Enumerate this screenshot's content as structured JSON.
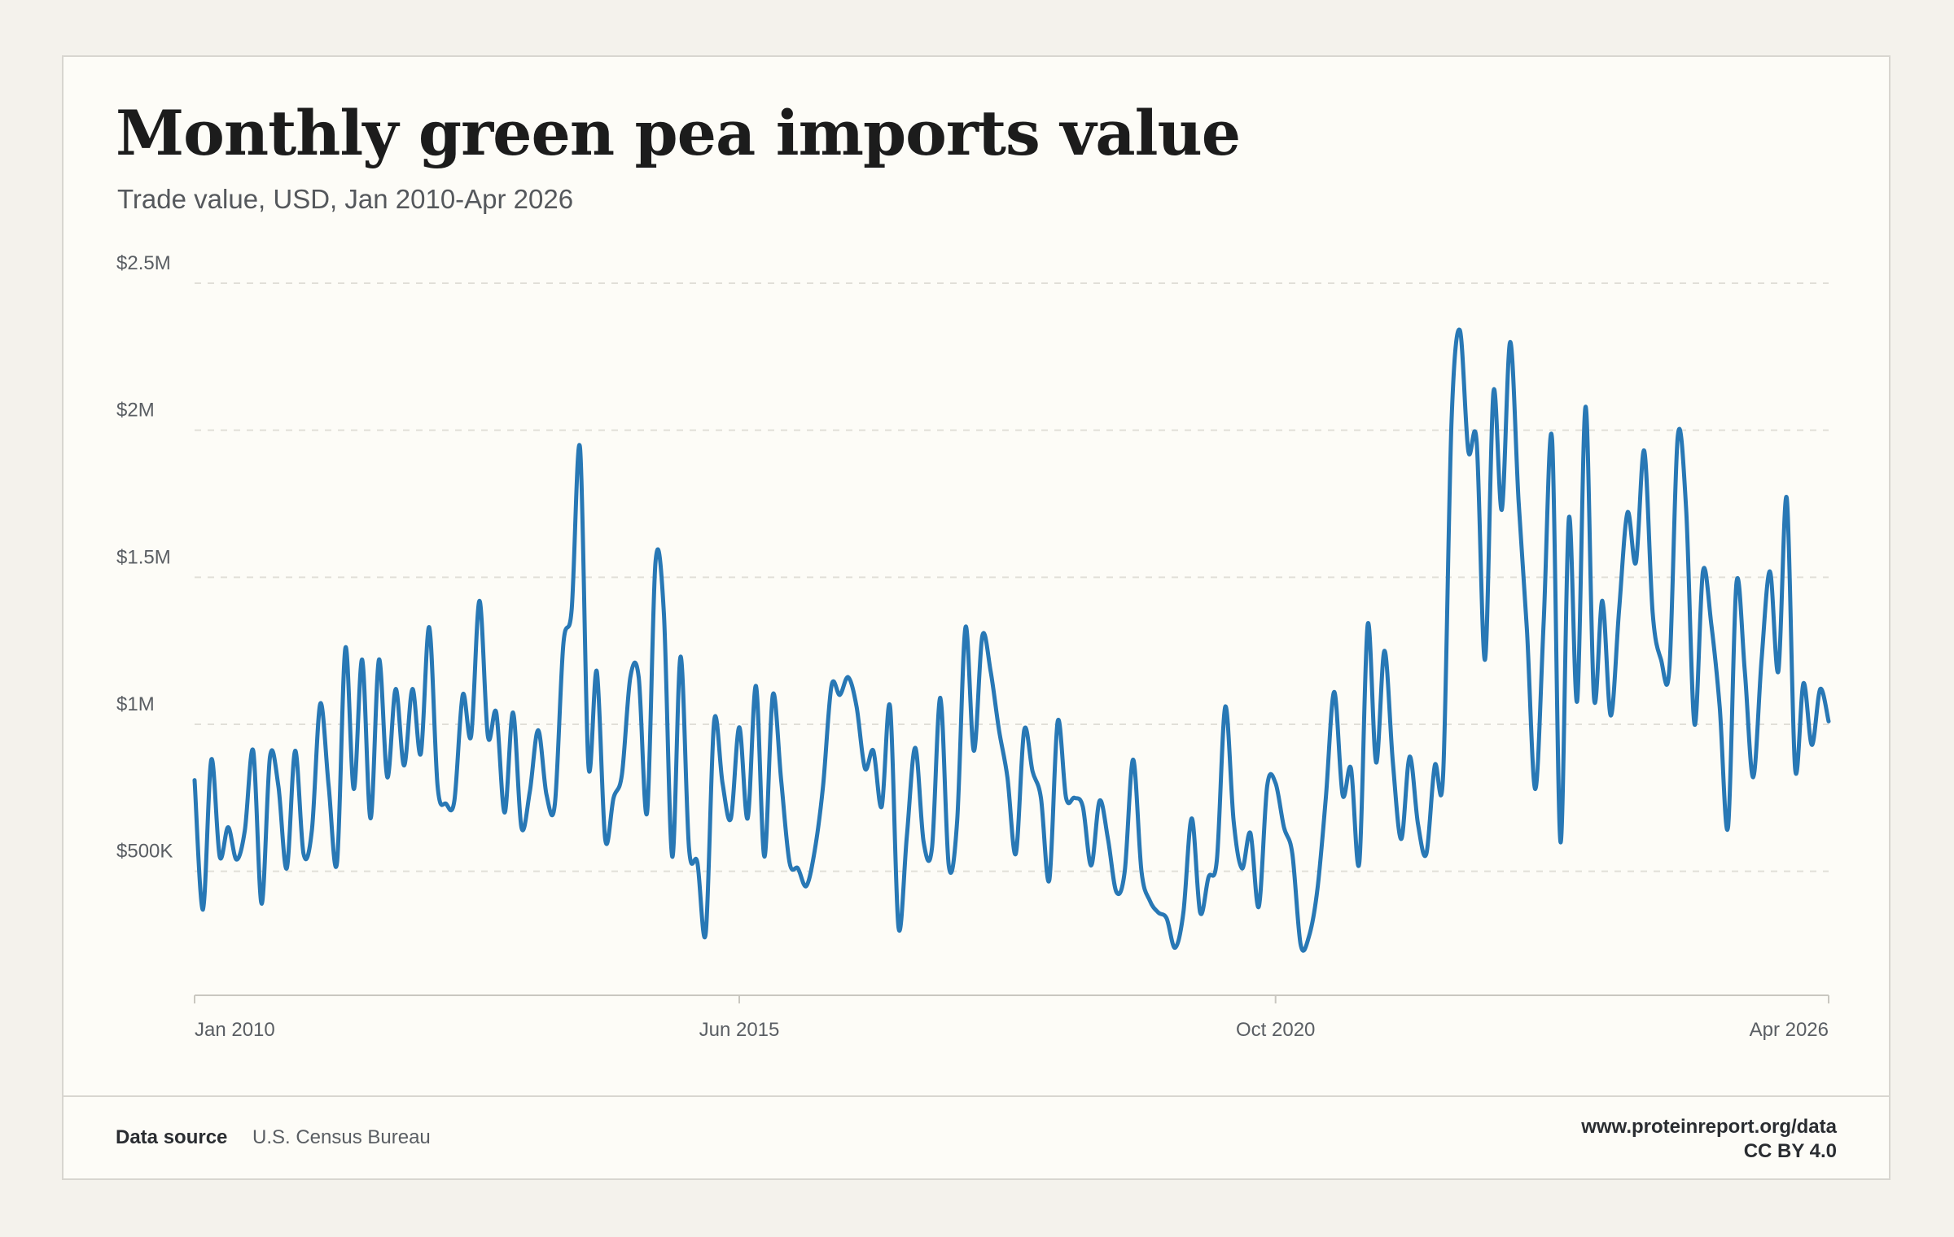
{
  "title": "Monthly green pea imports value",
  "subtitle": "Trade value, USD, Jan 2010-Apr 2026",
  "footer": {
    "source_label": "Data source",
    "source_value": "U.S. Census Bureau",
    "url": "www.proteinreport.org/data",
    "license": "CC BY 4.0"
  },
  "colors": {
    "line": "#2878b5",
    "grid": "#e1dfd8",
    "axis": "#c9c7c0"
  },
  "chart_data": {
    "type": "line",
    "title": "Monthly green pea imports value",
    "subtitle": "Trade value, USD, Jan 2010-Apr 2026",
    "x_start": "Jan 2010",
    "x_end": "Apr 2026",
    "x_frequency": "monthly",
    "x_tick_labels": [
      {
        "label": "Jan 2010",
        "month_index": 0
      },
      {
        "label": "Jun 2015",
        "month_index": 65
      },
      {
        "label": "Oct 2020",
        "month_index": 129
      },
      {
        "label": "Apr 2026",
        "month_index": 195
      }
    ],
    "y_ticks": [
      {
        "label": "$500K",
        "value": 500000
      },
      {
        "label": "$1M",
        "value": 1000000
      },
      {
        "label": "$1.5M",
        "value": 1500000
      },
      {
        "label": "$2M",
        "value": 2000000
      },
      {
        "label": "$2.5M",
        "value": 2500000
      }
    ],
    "ylim": [
      75000,
      2500000
    ],
    "grid": true,
    "legend": "none",
    "series": [
      {
        "values": [
          810000,
          370000,
          880000,
          550000,
          650000,
          540000,
          640000,
          910000,
          390000,
          890000,
          790000,
          510000,
          910000,
          560000,
          640000,
          1070000,
          790000,
          530000,
          1260000,
          780000,
          1220000,
          680000,
          1220000,
          820000,
          1120000,
          860000,
          1120000,
          900000,
          1330000,
          790000,
          730000,
          740000,
          1100000,
          960000,
          1420000,
          960000,
          1040000,
          700000,
          1040000,
          650000,
          770000,
          980000,
          760000,
          730000,
          1270000,
          1390000,
          1940000,
          860000,
          1180000,
          610000,
          750000,
          830000,
          1160000,
          1160000,
          700000,
          1550000,
          1380000,
          550000,
          1230000,
          580000,
          530000,
          290000,
          1010000,
          800000,
          680000,
          990000,
          680000,
          1130000,
          550000,
          1100000,
          810000,
          530000,
          510000,
          450000,
          570000,
          790000,
          1130000,
          1100000,
          1160000,
          1060000,
          850000,
          910000,
          720000,
          1060000,
          310000,
          620000,
          920000,
          600000,
          580000,
          1090000,
          520000,
          670000,
          1330000,
          910000,
          1300000,
          1180000,
          980000,
          820000,
          560000,
          980000,
          840000,
          750000,
          470000,
          1010000,
          750000,
          750000,
          720000,
          520000,
          740000,
          610000,
          430000,
          500000,
          880000,
          500000,
          400000,
          360000,
          340000,
          240000,
          360000,
          680000,
          360000,
          480000,
          540000,
          1060000,
          670000,
          510000,
          630000,
          380000,
          790000,
          800000,
          650000,
          560000,
          250000,
          280000,
          440000,
          750000,
          1110000,
          760000,
          850000,
          530000,
          1340000,
          870000,
          1250000,
          870000,
          610000,
          890000,
          660000,
          560000,
          860000,
          830000,
          2030000,
          2340000,
          1930000,
          1960000,
          1220000,
          2130000,
          1730000,
          2300000,
          1760000,
          1320000,
          780000,
          1350000,
          1970000,
          600000,
          1700000,
          1080000,
          2080000,
          1090000,
          1420000,
          1030000,
          1390000,
          1720000,
          1550000,
          1930000,
          1380000,
          1220000,
          1190000,
          1980000,
          1730000,
          1000000,
          1520000,
          1340000,
          1060000,
          650000,
          1480000,
          1180000,
          820000,
          1220000,
          1520000,
          1180000,
          1770000,
          850000,
          1140000,
          930000,
          1120000,
          1010000
        ]
      }
    ]
  }
}
